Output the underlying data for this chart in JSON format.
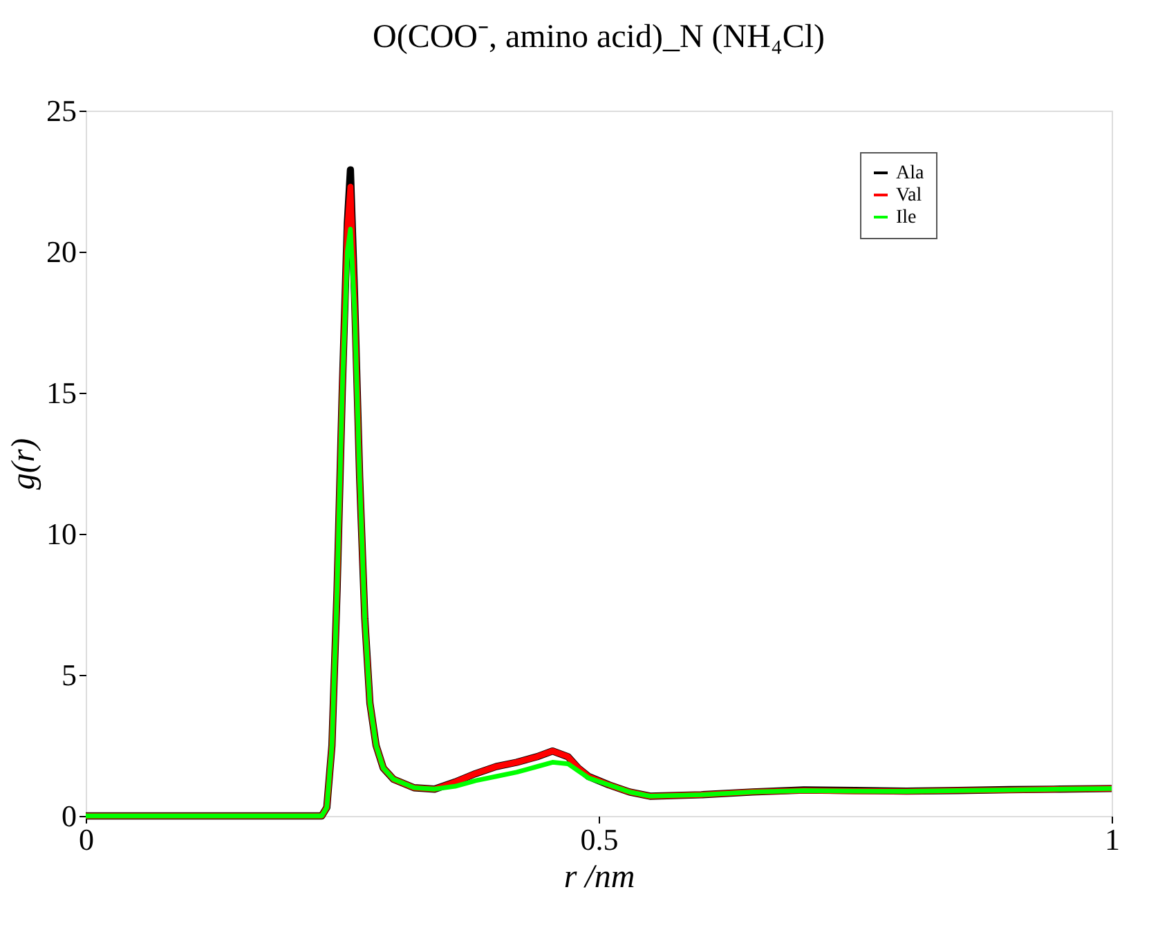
{
  "chart_data": {
    "type": "line",
    "title": "O(COO⁻, amino acid)_N (NH₄Cl)",
    "xlabel": "r /nm",
    "ylabel": "g(r)",
    "x": [
      0,
      0.23,
      0.235,
      0.24,
      0.245,
      0.25,
      0.255,
      0.258,
      0.262,
      0.267,
      0.272,
      0.277,
      0.283,
      0.29,
      0.3,
      0.32,
      0.34,
      0.36,
      0.38,
      0.4,
      0.42,
      0.44,
      0.455,
      0.47,
      0.48,
      0.49,
      0.51,
      0.53,
      0.55,
      0.6,
      0.65,
      0.7,
      0.75,
      0.8,
      0.85,
      0.9,
      0.95,
      1.0
    ],
    "series": [
      {
        "name": "Ala",
        "color": "#000000",
        "values": [
          0,
          0,
          0.3,
          2.5,
          8,
          15,
          21,
          22.9,
          18.5,
          12,
          7,
          4,
          2.5,
          1.7,
          1.3,
          1.0,
          0.95,
          1.2,
          1.5,
          1.75,
          1.9,
          2.1,
          2.3,
          2.1,
          1.7,
          1.4,
          1.1,
          0.85,
          0.7,
          0.75,
          0.85,
          0.92,
          0.9,
          0.88,
          0.9,
          0.93,
          0.95,
          0.97
        ]
      },
      {
        "name": "Val",
        "color": "#ff0000",
        "values": [
          0,
          0,
          0.3,
          2.5,
          8,
          15,
          20.8,
          22.3,
          18.3,
          12,
          7,
          4,
          2.5,
          1.7,
          1.3,
          1.0,
          0.95,
          1.2,
          1.5,
          1.75,
          1.9,
          2.1,
          2.3,
          2.1,
          1.7,
          1.4,
          1.1,
          0.85,
          0.7,
          0.75,
          0.85,
          0.9,
          0.88,
          0.87,
          0.9,
          0.92,
          0.95,
          0.97
        ]
      },
      {
        "name": "Ile",
        "color": "#00ff00",
        "values": [
          0,
          0,
          0.3,
          2.5,
          8,
          15,
          20,
          20.8,
          18,
          12,
          7,
          4,
          2.5,
          1.7,
          1.3,
          1.0,
          0.95,
          1.05,
          1.25,
          1.4,
          1.55,
          1.75,
          1.9,
          1.85,
          1.6,
          1.35,
          1.1,
          0.85,
          0.7,
          0.75,
          0.85,
          0.9,
          0.88,
          0.87,
          0.9,
          0.92,
          0.95,
          0.97
        ]
      }
    ],
    "xlim": [
      0,
      1
    ],
    "xticks": [
      0,
      0.5,
      1
    ],
    "ylim": [
      0,
      25
    ],
    "yticks": [
      0,
      5,
      10,
      15,
      20,
      25
    ],
    "grid": false,
    "legend": "top right",
    "marker": "none",
    "line_style": "solid"
  }
}
